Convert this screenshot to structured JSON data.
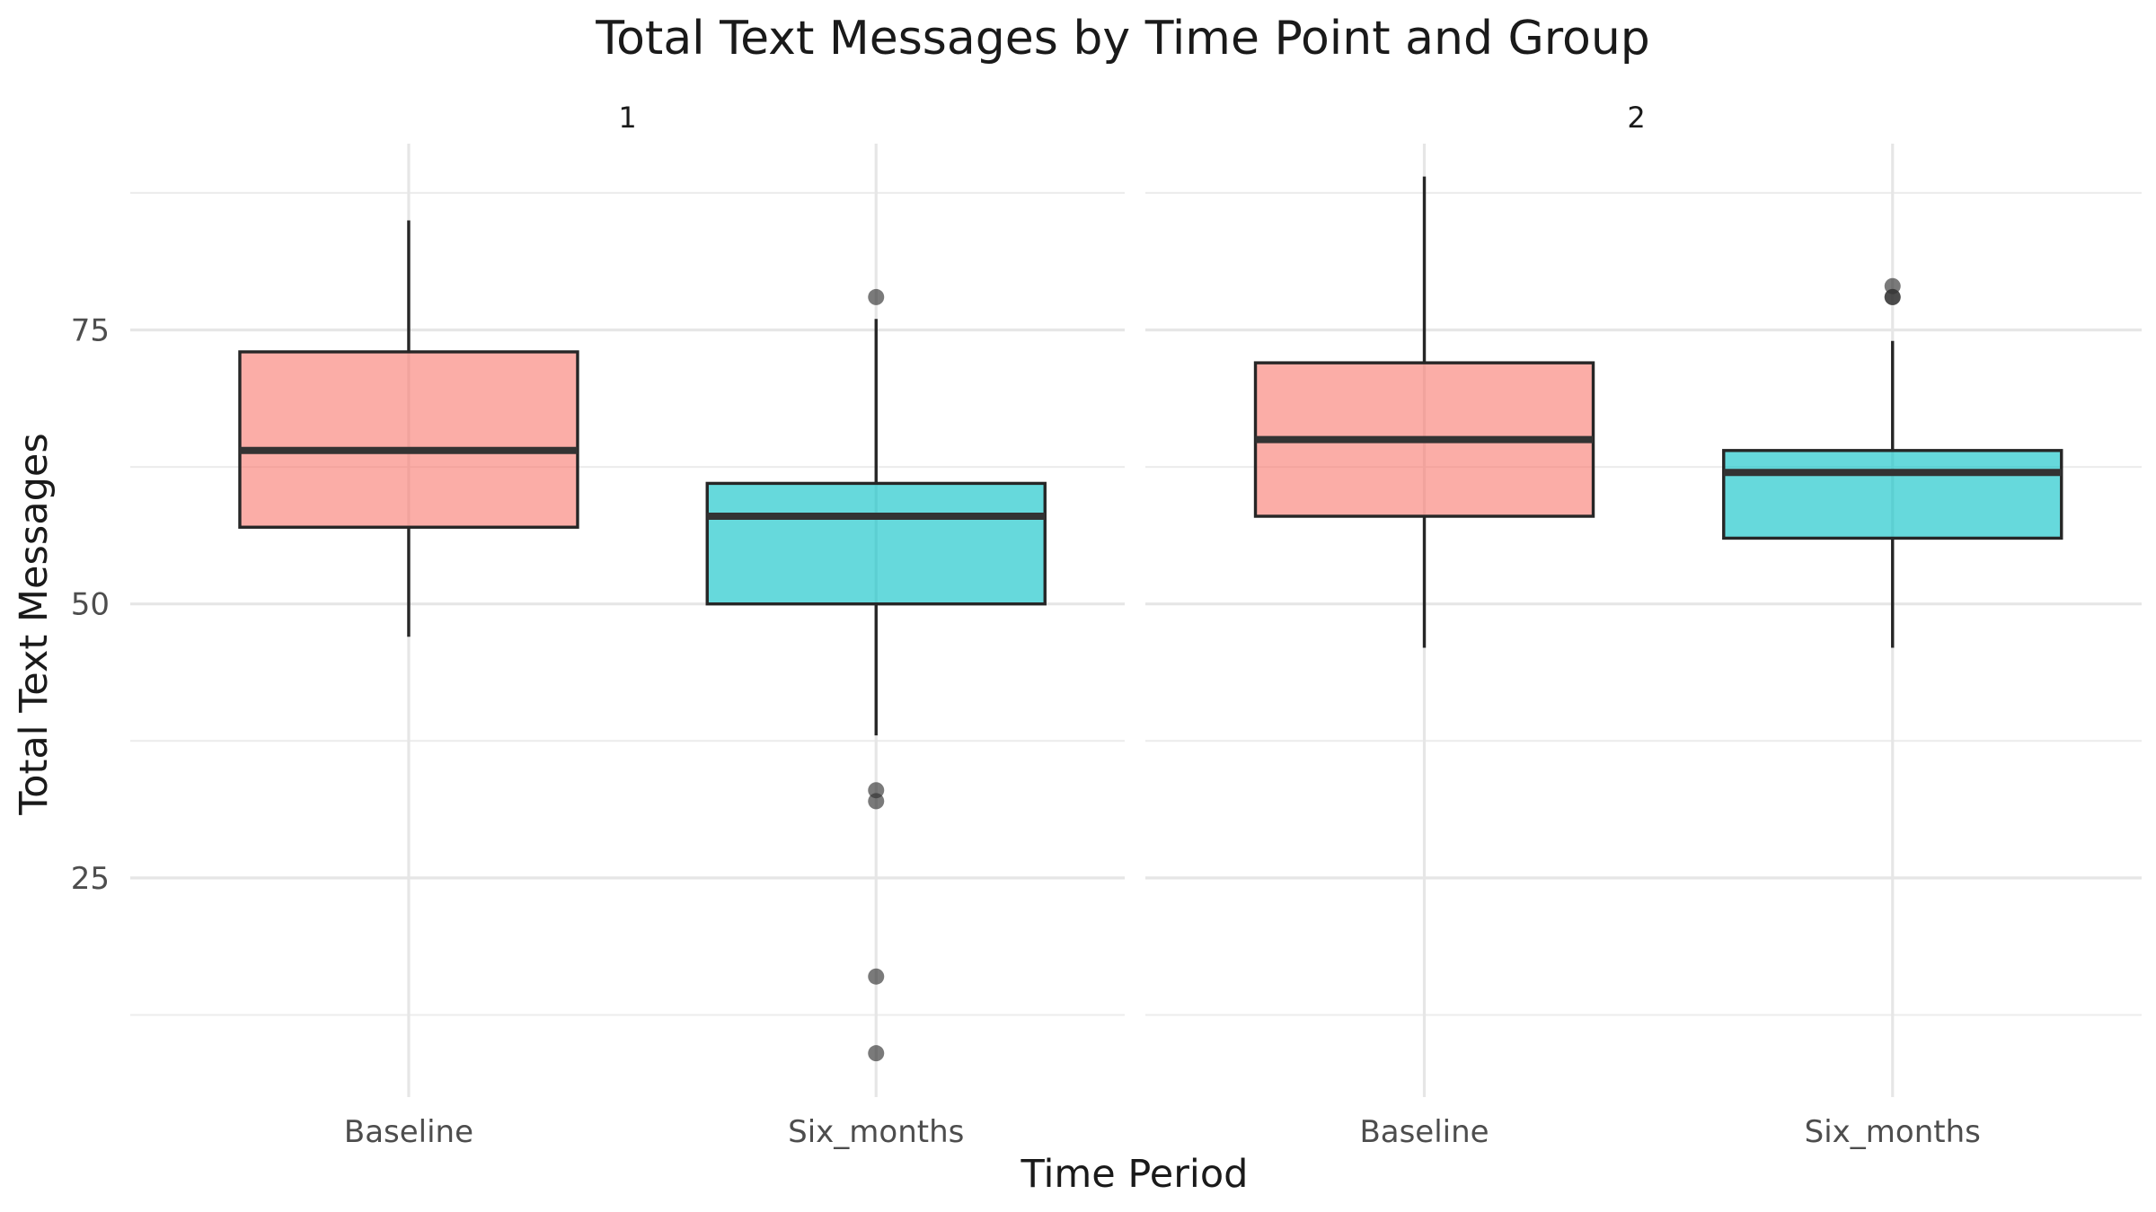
{
  "chart_data": {
    "type": "boxplot",
    "title": "Total Text Messages by Time Point and Group",
    "xlabel": "Time Period",
    "ylabel": "Total Text Messages",
    "ylim": [
      5,
      92
    ],
    "yticks": [
      25,
      50,
      75
    ],
    "yminor": [
      12.5,
      37.5,
      62.5,
      87.5
    ],
    "grid": true,
    "categories": [
      "Baseline",
      "Six_months"
    ],
    "colors": {
      "Baseline": "#F8766D",
      "Six_months": "#00BFC4"
    },
    "panels": [
      {
        "label": "1",
        "boxes": [
          {
            "category": "Baseline",
            "whisker_low": 47,
            "q1": 57,
            "median": 64,
            "q3": 73,
            "whisker_high": 85,
            "outliers": []
          },
          {
            "category": "Six_months",
            "whisker_low": 38,
            "q1": 50,
            "median": 58,
            "q3": 61,
            "whisker_high": 76,
            "outliers": [
              78,
              33,
              32,
              16,
              9
            ]
          }
        ]
      },
      {
        "label": "2",
        "boxes": [
          {
            "category": "Baseline",
            "whisker_low": 46,
            "q1": 58,
            "median": 65,
            "q3": 72,
            "whisker_high": 89,
            "outliers": []
          },
          {
            "category": "Six_months",
            "whisker_low": 46,
            "q1": 56,
            "median": 62,
            "q3": 64,
            "whisker_high": 74,
            "outliers": [
              79,
              78,
              78
            ]
          }
        ]
      }
    ]
  }
}
